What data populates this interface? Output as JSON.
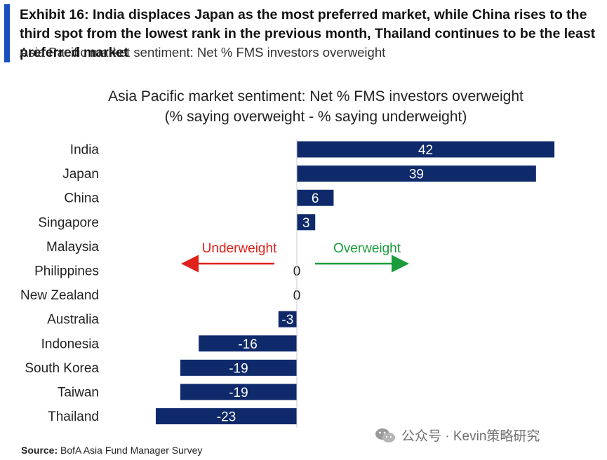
{
  "exhibit": {
    "title": "Exhibit 16: India displaces Japan as the most preferred market, while China rises to the third spot from the lowest rank in the previous month, Thailand continues to be the least preferred market",
    "subtitle": "Asia Pacific market sentiment: Net % FMS investors overweight"
  },
  "colors": {
    "accent": "#1a4fbf",
    "bar": "#0f2a6b",
    "underweight": "#e0201a",
    "overweight": "#1a9c3c"
  },
  "chart_data": {
    "type": "bar",
    "orientation": "horizontal",
    "title": "Asia Pacific market sentiment: Net % FMS investors overweight",
    "subtitle": "(% saying overweight - % saying underweight)",
    "categories": [
      "India",
      "Japan",
      "China",
      "Singapore",
      "Malaysia",
      "Philippines",
      "New Zealand",
      "Australia",
      "Indonesia",
      "South Korea",
      "Taiwan",
      "Thailand"
    ],
    "values": [
      42,
      39,
      6,
      3,
      null,
      0,
      0,
      -3,
      -16,
      -19,
      -19,
      -23
    ],
    "data_labels": [
      "42",
      "39",
      "6",
      "3",
      "",
      "0",
      "0",
      "-3",
      "-16",
      "-19",
      "-19",
      "-23"
    ],
    "xlim": [
      -23,
      42
    ],
    "grid": false,
    "annotations": {
      "left_arrow": "Underweight",
      "right_arrow": "Overweight"
    }
  },
  "source": {
    "label": "Source:",
    "text": "BofA Asia Fund Manager Survey"
  },
  "watermark": "公众号 · Kevin策略研究"
}
